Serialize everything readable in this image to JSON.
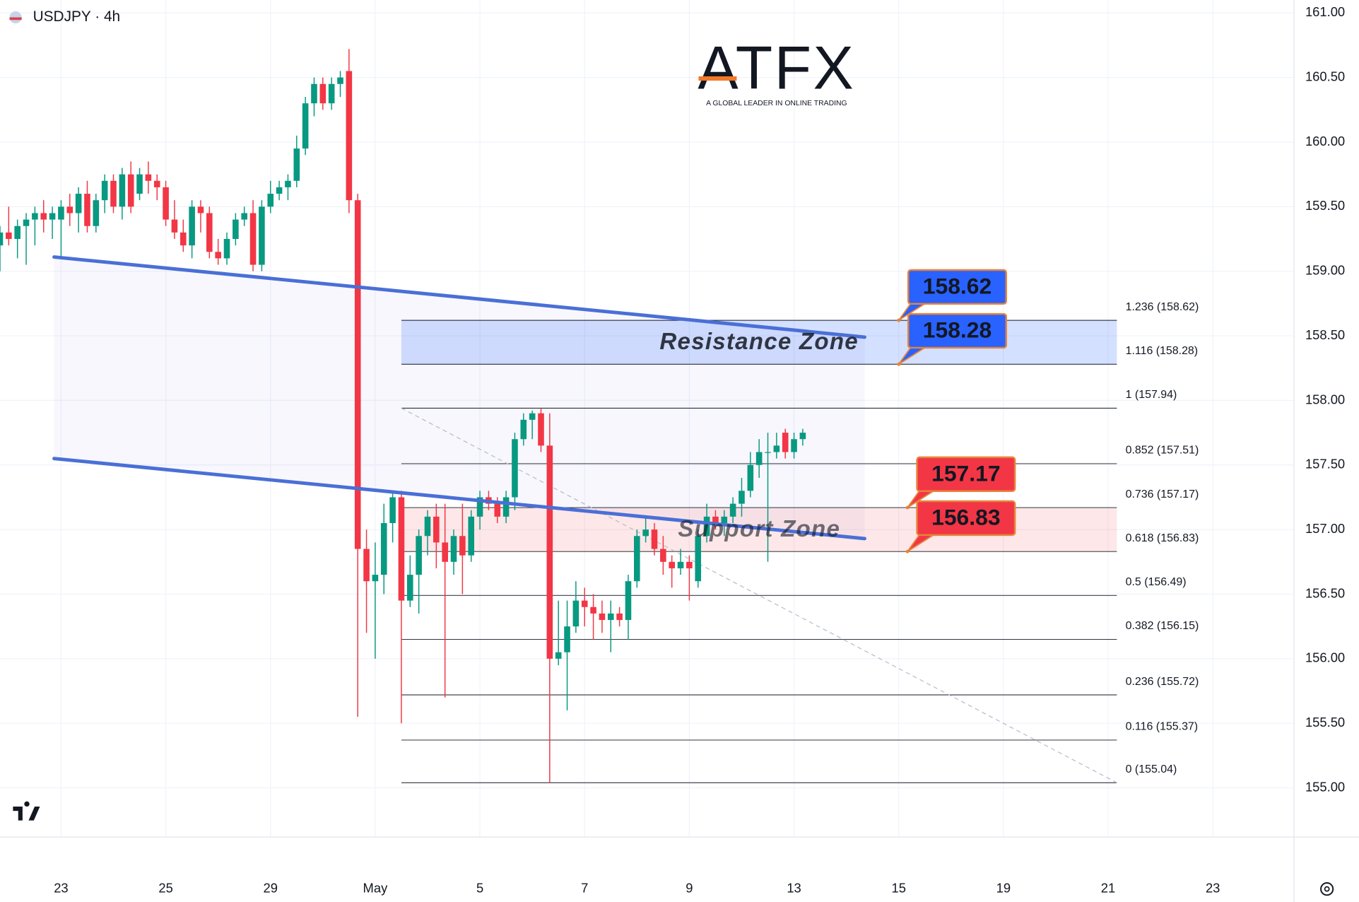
{
  "header": {
    "title": "USDJPY · 4h"
  },
  "logo": {
    "name": "ATFX",
    "tagline": "A GLOBAL LEADER IN ONLINE TRADING"
  },
  "chart_data": {
    "type": "candlestick",
    "up_color": "#089981",
    "down_color": "#f23645",
    "grid": true,
    "xlim": [
      3,
      151.3
    ],
    "ylim": [
      154.62,
      161.1
    ],
    "xticks": [
      {
        "value": 10,
        "label": "23"
      },
      {
        "value": 22,
        "label": "25"
      },
      {
        "value": 34,
        "label": "29"
      },
      {
        "value": 46,
        "label": "May"
      },
      {
        "value": 58,
        "label": "5"
      },
      {
        "value": 70,
        "label": "7"
      },
      {
        "value": 82,
        "label": "9"
      },
      {
        "value": 94,
        "label": "13"
      },
      {
        "value": 106,
        "label": "15"
      },
      {
        "value": 118,
        "label": "19"
      },
      {
        "value": 130,
        "label": "21"
      },
      {
        "value": 142,
        "label": "23"
      }
    ],
    "yticks": [
      {
        "value": 155,
        "label": "155.00"
      },
      {
        "value": 155.5,
        "label": "155.50"
      },
      {
        "value": 156,
        "label": "156.00"
      },
      {
        "value": 156.5,
        "label": "156.50"
      },
      {
        "value": 157,
        "label": "157.00"
      },
      {
        "value": 157.5,
        "label": "157.50"
      },
      {
        "value": 158,
        "label": "158.00"
      },
      {
        "value": 158.5,
        "label": "158.50"
      },
      {
        "value": 159,
        "label": "159.00"
      },
      {
        "value": 159.5,
        "label": "159.50"
      },
      {
        "value": 160,
        "label": "160.00"
      },
      {
        "value": 160.5,
        "label": "160.50"
      },
      {
        "value": 161,
        "label": "161.00"
      }
    ],
    "x": [
      3,
      4,
      5,
      6,
      7,
      8,
      9,
      10,
      11,
      12,
      13,
      14,
      15,
      16,
      17,
      18,
      19,
      20,
      21,
      22,
      23,
      24,
      25,
      26,
      27,
      28,
      29,
      30,
      31,
      32,
      33,
      34,
      35,
      36,
      37,
      38,
      39,
      40,
      41,
      42,
      43,
      44,
      45,
      46,
      47,
      48,
      49,
      50,
      51,
      52,
      53,
      54,
      55,
      56,
      57,
      58,
      59,
      60,
      61,
      62,
      63,
      64,
      65,
      66,
      67,
      68,
      69,
      70,
      71,
      72,
      73,
      74,
      75,
      76,
      77,
      78,
      79,
      80,
      81,
      82,
      83,
      84,
      85,
      86,
      87,
      88,
      89,
      90,
      91,
      92,
      93,
      94,
      95
    ],
    "ohlc": [
      [
        159.2,
        159.35,
        159.0,
        159.3
      ],
      [
        159.3,
        159.5,
        159.2,
        159.25
      ],
      [
        159.25,
        159.4,
        159.1,
        159.35
      ],
      [
        159.35,
        159.45,
        159.05,
        159.4
      ],
      [
        159.4,
        159.5,
        159.2,
        159.45
      ],
      [
        159.45,
        159.55,
        159.3,
        159.4
      ],
      [
        159.4,
        159.5,
        159.25,
        159.45
      ],
      [
        159.4,
        159.55,
        159.1,
        159.5
      ],
      [
        159.5,
        159.6,
        159.35,
        159.45
      ],
      [
        159.45,
        159.65,
        159.3,
        159.6
      ],
      [
        159.6,
        159.7,
        159.3,
        159.35
      ],
      [
        159.35,
        159.6,
        159.3,
        159.55
      ],
      [
        159.55,
        159.75,
        159.45,
        159.7
      ],
      [
        159.7,
        159.75,
        159.45,
        159.5
      ],
      [
        159.5,
        159.8,
        159.4,
        159.75
      ],
      [
        159.75,
        159.85,
        159.45,
        159.5
      ],
      [
        159.6,
        159.8,
        159.55,
        159.75
      ],
      [
        159.75,
        159.85,
        159.6,
        159.7
      ],
      [
        159.7,
        159.75,
        159.55,
        159.65
      ],
      [
        159.65,
        159.7,
        159.35,
        159.4
      ],
      [
        159.4,
        159.55,
        159.25,
        159.3
      ],
      [
        159.3,
        159.4,
        159.15,
        159.2
      ],
      [
        159.2,
        159.55,
        159.1,
        159.5
      ],
      [
        159.5,
        159.55,
        159.3,
        159.45
      ],
      [
        159.45,
        159.5,
        159.1,
        159.15
      ],
      [
        159.15,
        159.25,
        159.05,
        159.1
      ],
      [
        159.1,
        159.3,
        159.05,
        159.25
      ],
      [
        159.25,
        159.45,
        159.2,
        159.4
      ],
      [
        159.4,
        159.5,
        159.35,
        159.45
      ],
      [
        159.45,
        159.55,
        159.0,
        159.05
      ],
      [
        159.05,
        159.55,
        159.0,
        159.5
      ],
      [
        159.5,
        159.7,
        159.45,
        159.6
      ],
      [
        159.6,
        159.7,
        159.55,
        159.65
      ],
      [
        159.65,
        159.75,
        159.55,
        159.7
      ],
      [
        159.7,
        160.05,
        159.65,
        159.95
      ],
      [
        159.95,
        160.35,
        159.9,
        160.3
      ],
      [
        160.3,
        160.5,
        160.2,
        160.45
      ],
      [
        160.45,
        160.5,
        160.25,
        160.3
      ],
      [
        160.3,
        160.5,
        160.25,
        160.45
      ],
      [
        160.45,
        160.55,
        160.35,
        160.5
      ],
      [
        160.55,
        160.72,
        159.45,
        159.55
      ],
      [
        159.55,
        159.6,
        155.55,
        156.85
      ],
      [
        156.85,
        157.0,
        156.2,
        156.6
      ],
      [
        156.6,
        156.9,
        156.0,
        156.65
      ],
      [
        156.65,
        157.2,
        156.5,
        157.05
      ],
      [
        157.05,
        157.3,
        156.9,
        157.25
      ],
      [
        157.25,
        157.3,
        155.5,
        156.45
      ],
      [
        156.45,
        156.8,
        156.4,
        156.65
      ],
      [
        156.65,
        157.0,
        156.35,
        156.95
      ],
      [
        156.95,
        157.15,
        156.8,
        157.1
      ],
      [
        157.1,
        157.2,
        156.7,
        156.9
      ],
      [
        156.9,
        157.2,
        155.7,
        156.75
      ],
      [
        156.75,
        157.0,
        156.65,
        156.95
      ],
      [
        156.95,
        157.2,
        156.5,
        156.8
      ],
      [
        156.8,
        157.15,
        156.75,
        157.1
      ],
      [
        157.1,
        157.3,
        157.0,
        157.25
      ],
      [
        157.25,
        157.3,
        157.15,
        157.2
      ],
      [
        157.2,
        157.25,
        157.05,
        157.1
      ],
      [
        157.1,
        157.3,
        157.05,
        157.25
      ],
      [
        157.25,
        157.75,
        157.15,
        157.7
      ],
      [
        157.7,
        157.9,
        157.65,
        157.85
      ],
      [
        157.85,
        157.92,
        157.7,
        157.9
      ],
      [
        157.9,
        157.94,
        157.6,
        157.65
      ],
      [
        157.65,
        157.9,
        155.04,
        156.0
      ],
      [
        156.0,
        156.45,
        155.95,
        156.05
      ],
      [
        156.05,
        156.45,
        155.6,
        156.25
      ],
      [
        156.25,
        156.6,
        156.2,
        156.45
      ],
      [
        156.45,
        156.55,
        156.25,
        156.4
      ],
      [
        156.4,
        156.5,
        156.15,
        156.35
      ],
      [
        156.35,
        156.45,
        156.2,
        156.3
      ],
      [
        156.3,
        156.45,
        156.05,
        156.35
      ],
      [
        156.35,
        156.4,
        156.25,
        156.3
      ],
      [
        156.3,
        156.65,
        156.15,
        156.6
      ],
      [
        156.6,
        157.0,
        156.55,
        156.95
      ],
      [
        156.95,
        157.1,
        156.9,
        157.0
      ],
      [
        157.0,
        157.05,
        156.8,
        156.85
      ],
      [
        156.85,
        156.95,
        156.65,
        156.75
      ],
      [
        156.75,
        156.8,
        156.55,
        156.7
      ],
      [
        156.7,
        156.85,
        156.65,
        156.75
      ],
      [
        156.75,
        156.8,
        156.45,
        156.7
      ],
      [
        156.6,
        157.0,
        156.55,
        156.95
      ],
      [
        156.95,
        157.2,
        156.9,
        157.1
      ],
      [
        157.1,
        157.15,
        157.0,
        157.05
      ],
      [
        157.05,
        157.15,
        156.95,
        157.1
      ],
      [
        157.1,
        157.25,
        157.05,
        157.2
      ],
      [
        157.2,
        157.4,
        157.1,
        157.3
      ],
      [
        157.3,
        157.6,
        157.25,
        157.5
      ],
      [
        157.5,
        157.7,
        157.4,
        157.6
      ],
      [
        157.6,
        157.75,
        156.75,
        157.6
      ],
      [
        157.6,
        157.75,
        157.55,
        157.65
      ],
      [
        157.75,
        157.78,
        157.55,
        157.6
      ],
      [
        157.6,
        157.75,
        157.55,
        157.7
      ],
      [
        157.7,
        157.78,
        157.65,
        157.75
      ]
    ],
    "fib_xrange": [
      49,
      131
    ],
    "fib_levels": [
      {
        "value": 158.62,
        "label": "1.236 (158.62)"
      },
      {
        "value": 158.28,
        "label": "1.116 (158.28)"
      },
      {
        "value": 157.94,
        "label": "1 (157.94)"
      },
      {
        "value": 157.51,
        "label": "0.852 (157.51)"
      },
      {
        "value": 157.17,
        "label": "0.736 (157.17)"
      },
      {
        "value": 156.83,
        "label": "0.618 (156.83)"
      },
      {
        "value": 156.49,
        "label": "0.5 (156.49)"
      },
      {
        "value": 156.15,
        "label": "0.382 (156.15)"
      },
      {
        "value": 155.72,
        "label": "0.236 (155.72)"
      },
      {
        "value": 155.37,
        "label": "0.116 (155.37)"
      },
      {
        "value": 155.04,
        "label": "0 (155.04)"
      }
    ],
    "fib_trend": {
      "x": [
        49,
        131
      ],
      "y": [
        157.94,
        155.04
      ]
    },
    "zones": [
      {
        "name": "Resistance Zone",
        "range": [
          158.28,
          158.62
        ],
        "color": "#2962ff"
      },
      {
        "name": "Support Zone",
        "range": [
          156.83,
          157.17
        ],
        "color": "#f23645"
      }
    ],
    "price_labels": [
      {
        "value": 158.62,
        "color": "#2962ff",
        "x": 106
      },
      {
        "value": 158.28,
        "color": "#2962ff",
        "x": 106
      },
      {
        "value": 157.17,
        "color": "#f23645",
        "x": 107
      },
      {
        "value": 156.83,
        "color": "#f23645",
        "x": 107
      }
    ],
    "trendlines": [
      {
        "x": [
          9.2,
          102.1
        ],
        "y": [
          159.11,
          158.49
        ],
        "color": "#4a6fd6"
      },
      {
        "x": [
          9.2,
          102.1
        ],
        "y": [
          157.55,
          156.93
        ],
        "color": "#4a6fd6"
      }
    ]
  }
}
